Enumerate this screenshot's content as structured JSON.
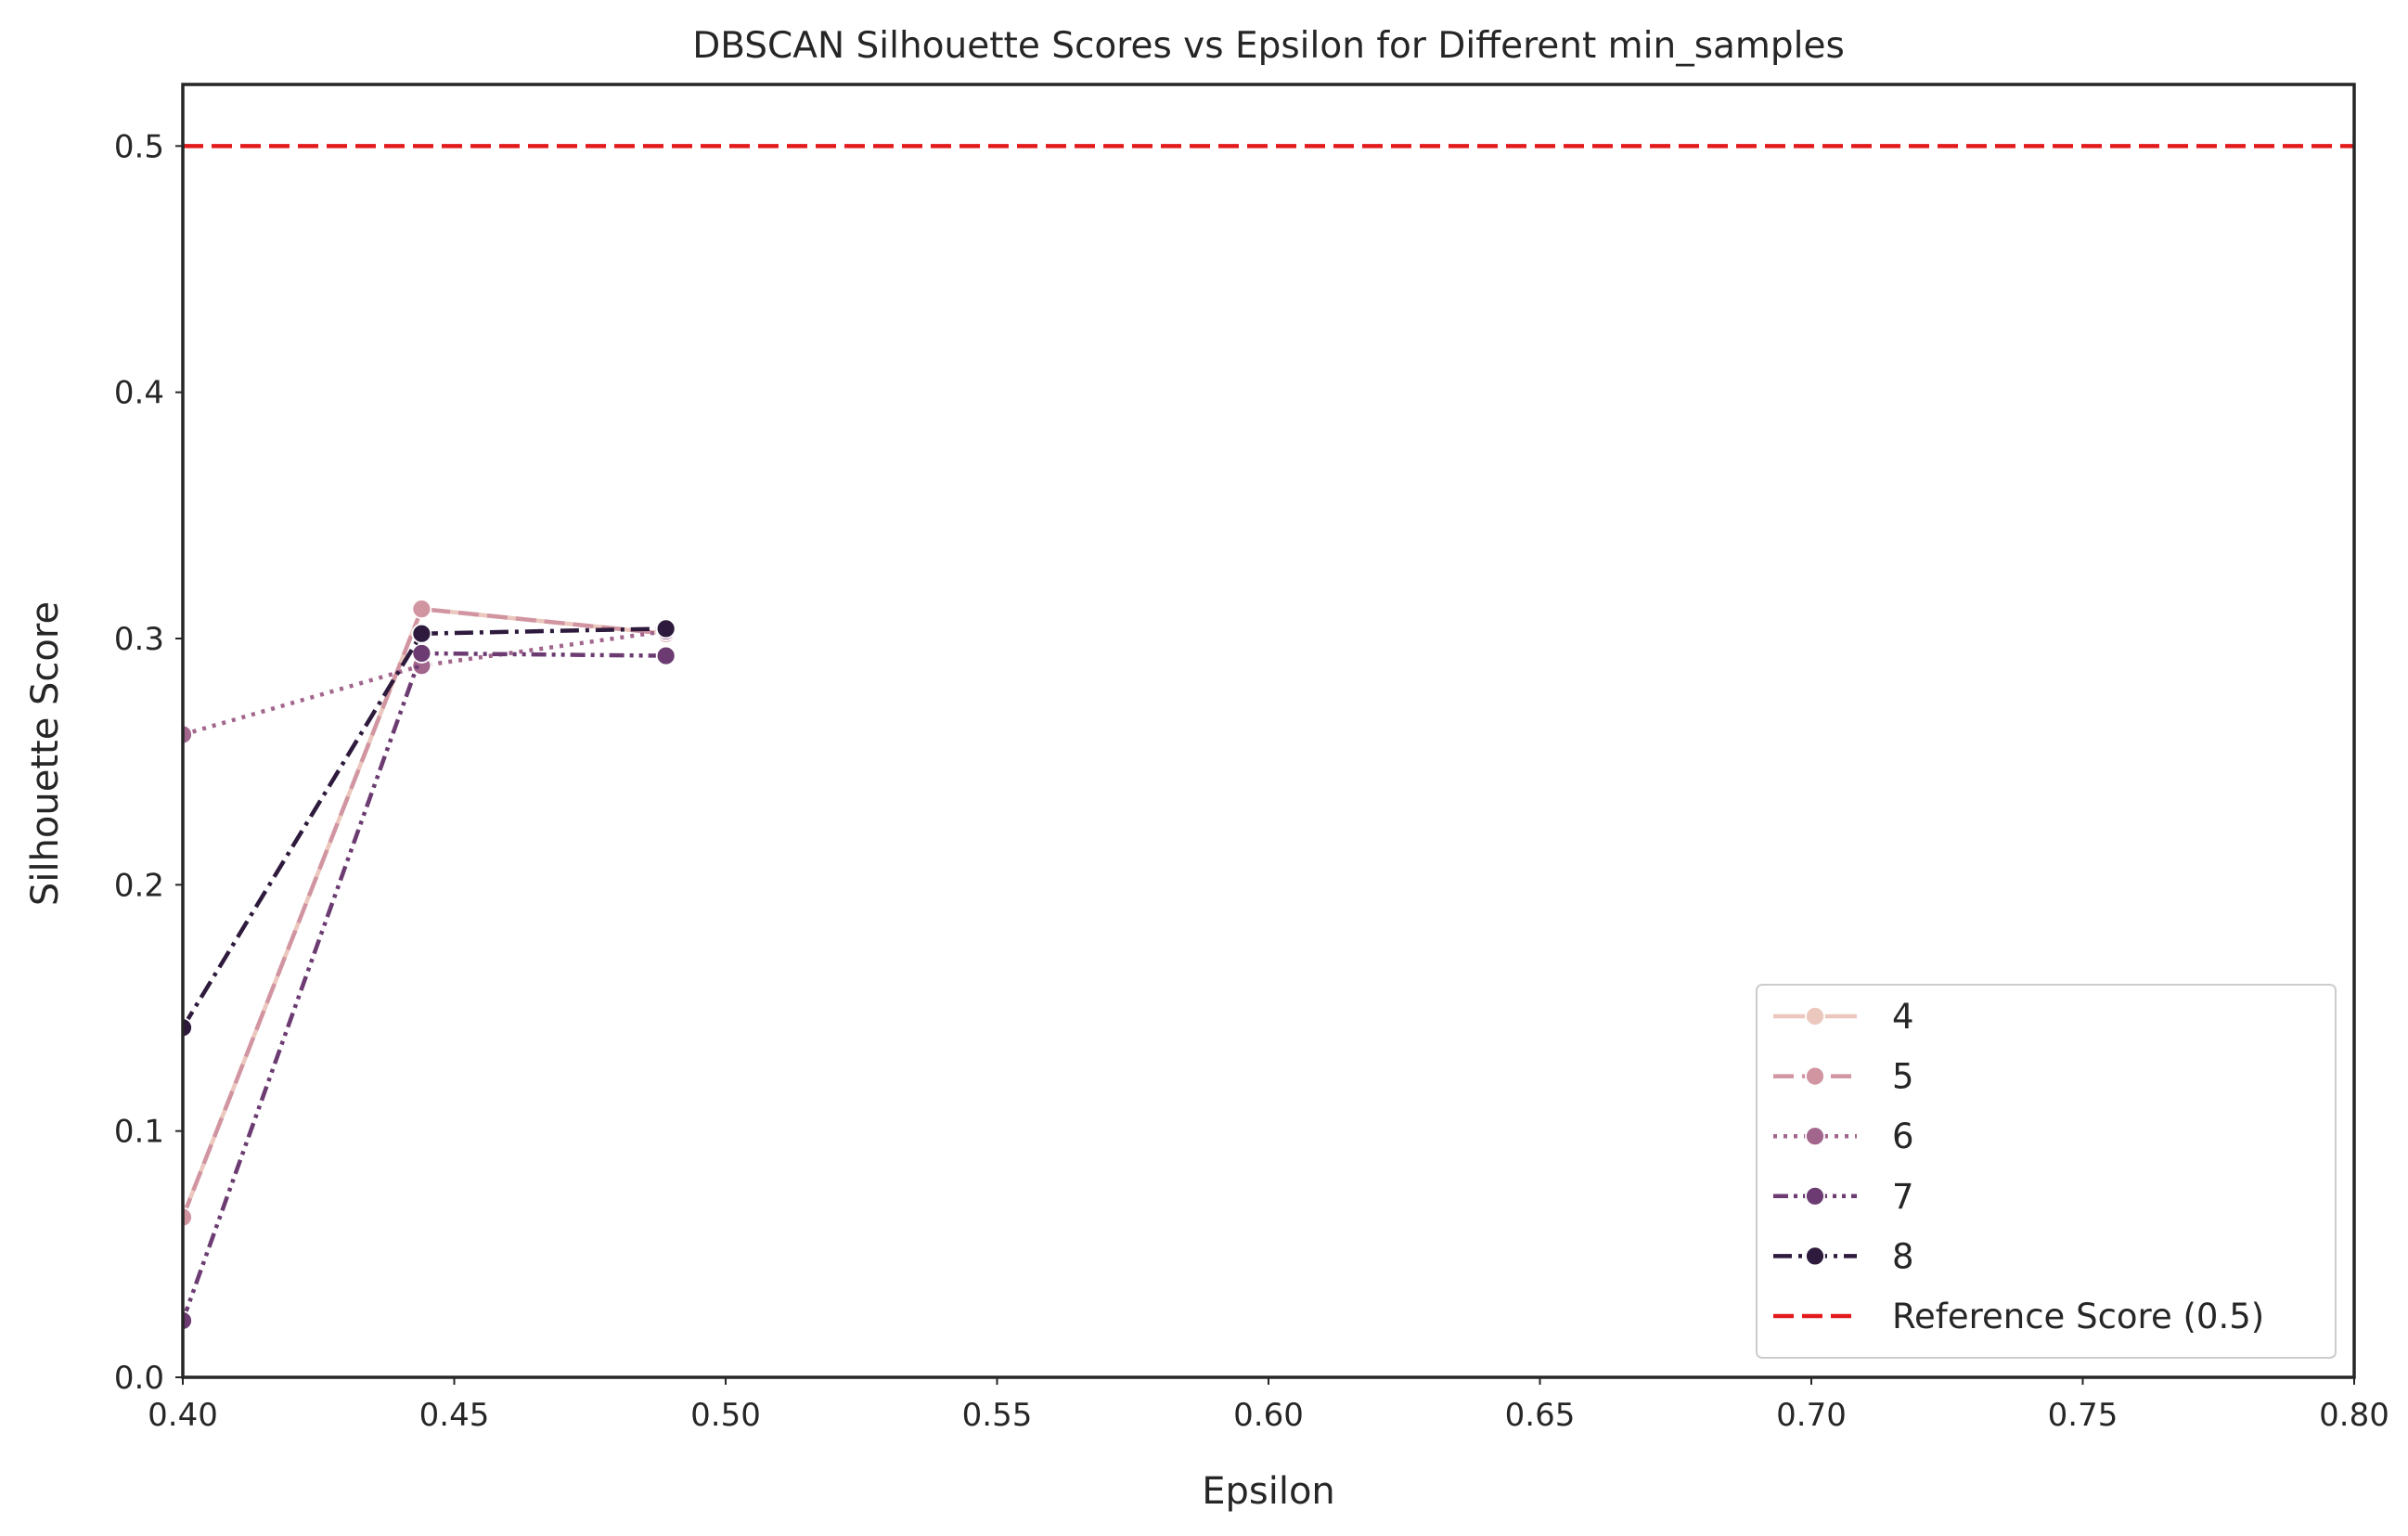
{
  "chart_data": {
    "type": "line",
    "title": "DBSCAN Silhouette Scores vs Epsilon for Different min_samples",
    "xlabel": "Epsilon",
    "ylabel": "Silhouette Score",
    "xlim": [
      0.4,
      0.8
    ],
    "ylim": [
      0.0,
      0.525
    ],
    "xticks": [
      "0.40",
      "0.45",
      "0.50",
      "0.55",
      "0.60",
      "0.65",
      "0.70",
      "0.75",
      "0.80"
    ],
    "yticks": [
      "0.0",
      "0.1",
      "0.2",
      "0.3",
      "0.4",
      "0.5"
    ],
    "grid": false,
    "legend_position": "lower-right",
    "series": [
      {
        "name": "4",
        "color": "#ebc7bd",
        "dash": "solid",
        "x": [
          0.4,
          0.444,
          0.489
        ],
        "y": [
          0.065,
          0.312,
          0.302
        ]
      },
      {
        "name": "5",
        "color": "#d195a1",
        "dash": "dashed",
        "x": [
          0.4,
          0.444,
          0.489
        ],
        "y": [
          0.065,
          0.312,
          0.302
        ]
      },
      {
        "name": "6",
        "color": "#a2668d",
        "dash": "dotted",
        "x": [
          0.4,
          0.444,
          0.489
        ],
        "y": [
          0.261,
          0.289,
          0.303
        ]
      },
      {
        "name": "7",
        "color": "#6b3b71",
        "dash": "dashdotdot",
        "x": [
          0.4,
          0.444,
          0.489
        ],
        "y": [
          0.023,
          0.294,
          0.293
        ]
      },
      {
        "name": "8",
        "color": "#2e1a3c",
        "dash": "dashdot",
        "x": [
          0.4,
          0.444,
          0.489
        ],
        "y": [
          0.142,
          0.302,
          0.304
        ]
      }
    ],
    "reference_line": {
      "name": "Reference Score (0.5)",
      "y": 0.5,
      "color": "#e31a1c",
      "dash": "dashed"
    }
  }
}
